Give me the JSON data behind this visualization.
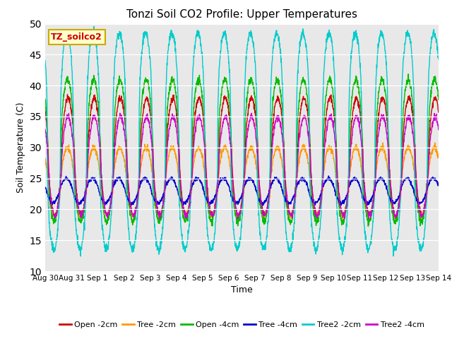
{
  "title": "Tonzi Soil CO2 Profile: Upper Temperatures",
  "xlabel": "Time",
  "ylabel": "Soil Temperature (C)",
  "ylim": [
    10,
    50
  ],
  "yticks": [
    10,
    15,
    20,
    25,
    30,
    35,
    40,
    45,
    50
  ],
  "x_start": 0,
  "x_end": 15,
  "n_points": 2000,
  "period": 1.0,
  "series": [
    {
      "label": "Open -2cm",
      "color": "#cc0000",
      "amp": 9.5,
      "mid": 28.5,
      "phase_shift": 0.62,
      "sharpness": 1.5,
      "noise": 0.25
    },
    {
      "label": "Tree -2cm",
      "color": "#ff9900",
      "amp": 5.5,
      "mid": 24.5,
      "phase_shift": 0.6,
      "sharpness": 1.5,
      "noise": 0.25
    },
    {
      "label": "Open -4cm",
      "color": "#00bb00",
      "amp": 11.5,
      "mid": 29.5,
      "phase_shift": 0.6,
      "sharpness": 1.8,
      "noise": 0.3
    },
    {
      "label": "Tree -4cm",
      "color": "#0000cc",
      "amp": 2.0,
      "mid": 23.0,
      "phase_shift": 0.55,
      "sharpness": 1.2,
      "noise": 0.15
    },
    {
      "label": "Tree2 -2cm",
      "color": "#00cccc",
      "amp": 17.5,
      "mid": 31.0,
      "phase_shift": 0.58,
      "sharpness": 2.5,
      "noise": 0.35
    },
    {
      "label": "Tree2 -4cm",
      "color": "#cc00cc",
      "amp": 8.0,
      "mid": 27.0,
      "phase_shift": 0.62,
      "sharpness": 1.4,
      "noise": 0.25
    }
  ],
  "x_tick_labels": [
    "Aug 30",
    "Aug 31",
    "Sep 1",
    "Sep 2",
    "Sep 3",
    "Sep 4",
    "Sep 5",
    "Sep 6",
    "Sep 7",
    "Sep 8",
    "Sep 9",
    "Sep 10",
    "Sep 11",
    "Sep 12",
    "Sep 13",
    "Sep 14"
  ],
  "x_tick_positions": [
    0,
    1,
    2,
    3,
    4,
    5,
    6,
    7,
    8,
    9,
    10,
    11,
    12,
    13,
    14,
    15
  ],
  "plot_bg": "#e8e8e8",
  "fig_bg": "#ffffff",
  "grid_color": "#ffffff",
  "legend_box_facecolor": "#ffffcc",
  "legend_box_edgecolor": "#ccaa00",
  "legend_text": "TZ_soilco2",
  "legend_text_color": "#cc0000"
}
